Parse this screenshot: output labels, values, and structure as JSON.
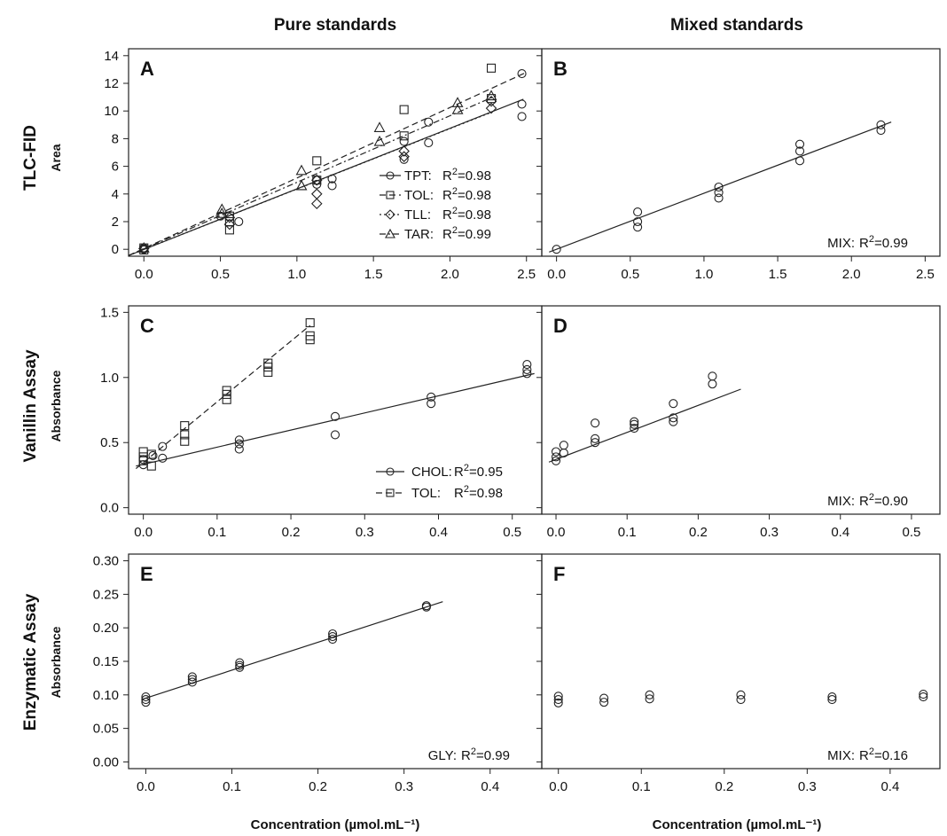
{
  "figure": {
    "col_titles": [
      "Pure standards",
      "Mixed standards"
    ],
    "row_titles": [
      "TLC-FID",
      "Vanillin Assay",
      "Enzymatic Assay"
    ],
    "ylabels": [
      "Area",
      "Absorbance",
      "Absorbance"
    ],
    "xlabel": "Concentration (µmol.mL⁻¹)"
  },
  "chart_data": [
    {
      "type": "scatter",
      "panel": "A",
      "xlim": [
        -0.1,
        2.6
      ],
      "ylim": [
        -0.5,
        14.5
      ],
      "xticks": [
        0.0,
        0.5,
        1.0,
        1.5,
        2.0,
        2.5
      ],
      "xtick_labels": [
        "0.0",
        "0.5",
        "1.0",
        "1.5",
        "2.0",
        "2.5"
      ],
      "yticks": [
        0,
        2,
        4,
        6,
        8,
        10,
        12,
        14
      ],
      "ytick_labels": [
        "0",
        "2",
        "4",
        "6",
        "8",
        "10",
        "12",
        "14"
      ],
      "show_y_labels": true,
      "legend_position": "bottom-right",
      "series": [
        {
          "name": "TPT",
          "marker": "circle",
          "line": "solid",
          "r2_label": "R²=0.98",
          "x": [
            0,
            0,
            0.5,
            0.62,
            1.13,
            1.13,
            1.23,
            1.23,
            1.7,
            1.7,
            1.86,
            1.86,
            2.47,
            2.47,
            2.47
          ],
          "y": [
            0,
            0.1,
            2.4,
            2.0,
            4.7,
            5.0,
            4.6,
            5.1,
            6.5,
            7.8,
            7.7,
            9.2,
            12.7,
            10.5,
            9.6
          ],
          "fit": [
            [
              -0.1,
              -0.45
            ],
            [
              2.48,
              10.85
            ]
          ]
        },
        {
          "name": "TOL",
          "marker": "square",
          "line": "dashed",
          "r2_label": "R²=0.98",
          "x": [
            0,
            0,
            0.56,
            0.56,
            0.56,
            1.13,
            1.13,
            1.7,
            1.7,
            2.27,
            2.27
          ],
          "y": [
            0.1,
            -0.05,
            1.4,
            2.0,
            2.4,
            5.0,
            6.4,
            8.2,
            10.1,
            13.1,
            10.9
          ],
          "fit": [
            [
              -0.1,
              -0.45
            ],
            [
              2.5,
              12.8
            ]
          ]
        },
        {
          "name": "TLL",
          "marker": "diamond",
          "line": "dotted",
          "r2_label": "R²=0.98",
          "x": [
            0,
            0.56,
            0.56,
            1.13,
            1.13,
            1.13,
            1.7,
            1.7,
            2.27,
            2.27
          ],
          "y": [
            0.05,
            1.8,
            2.3,
            3.3,
            4.0,
            5.0,
            6.7,
            7.1,
            10.2,
            10.7
          ],
          "fit": [
            [
              -0.1,
              -0.45
            ],
            [
              2.27,
              9.9
            ]
          ]
        },
        {
          "name": "TAR",
          "marker": "triangle",
          "line": "dashdot",
          "r2_label": "R²=0.99",
          "x": [
            0,
            0.51,
            0.51,
            1.03,
            1.03,
            1.54,
            1.54,
            2.05,
            2.05,
            2.27
          ],
          "y": [
            0.1,
            2.6,
            2.9,
            4.6,
            5.7,
            7.8,
            8.8,
            10.1,
            10.6,
            11.1
          ],
          "fit": [
            [
              -0.1,
              -0.45
            ],
            [
              2.3,
              11.1
            ]
          ]
        }
      ]
    },
    {
      "type": "scatter",
      "panel": "B",
      "xlim": [
        -0.1,
        2.6
      ],
      "ylim": [
        -0.5,
        14.5
      ],
      "xticks": [
        0.0,
        0.5,
        1.0,
        1.5,
        2.0,
        2.5
      ],
      "xtick_labels": [
        "0.0",
        "0.5",
        "1.0",
        "1.5",
        "2.0",
        "2.5"
      ],
      "yticks": [
        0,
        2,
        4,
        6,
        8,
        10,
        12,
        14
      ],
      "ytick_labels": [
        "0",
        "2",
        "4",
        "6",
        "8",
        "10",
        "12",
        "14"
      ],
      "show_y_labels": false,
      "legend_position": "bottom-right",
      "series": [
        {
          "name": "MIX",
          "marker": "circle",
          "line": "solid",
          "r2_label": "R²=0.99",
          "x": [
            0,
            0.55,
            0.55,
            0.55,
            1.1,
            1.1,
            1.1,
            1.65,
            1.65,
            1.65,
            2.2,
            2.2
          ],
          "y": [
            0,
            1.6,
            2.0,
            2.7,
            3.7,
            4.1,
            4.5,
            6.4,
            7.1,
            7.6,
            8.6,
            9.0
          ],
          "fit": [
            [
              -0.05,
              -0.2
            ],
            [
              2.27,
              9.2
            ]
          ]
        }
      ]
    },
    {
      "type": "scatter",
      "panel": "C",
      "xlim": [
        -0.02,
        0.54
      ],
      "ylim": [
        -0.05,
        1.55
      ],
      "xticks": [
        0.0,
        0.1,
        0.2,
        0.3,
        0.4,
        0.5
      ],
      "xtick_labels": [
        "0.0",
        "0.1",
        "0.2",
        "0.3",
        "0.4",
        "0.5"
      ],
      "yticks": [
        0.0,
        0.5,
        1.0,
        1.5
      ],
      "ytick_labels": [
        "0.0",
        "0.5",
        "1.0",
        "1.5"
      ],
      "show_y_labels": true,
      "legend_position": "bottom-right",
      "series": [
        {
          "name": "CHOL",
          "marker": "circle",
          "line": "solid",
          "r2_label": "R²=0.95",
          "x": [
            0,
            0,
            0.013,
            0.026,
            0.026,
            0.13,
            0.13,
            0.13,
            0.26,
            0.26,
            0.39,
            0.39,
            0.52,
            0.52,
            0.52
          ],
          "y": [
            0.33,
            0.37,
            0.4,
            0.38,
            0.47,
            0.45,
            0.49,
            0.52,
            0.56,
            0.7,
            0.8,
            0.85,
            1.03,
            1.06,
            1.1
          ],
          "fit": [
            [
              -0.01,
              0.32
            ],
            [
              0.53,
              1.03
            ]
          ]
        },
        {
          "name": "TOL",
          "marker": "square",
          "line": "dashed",
          "r2_label": "R²=0.98",
          "x": [
            0,
            0,
            0,
            0.011,
            0.011,
            0.056,
            0.056,
            0.056,
            0.113,
            0.113,
            0.113,
            0.169,
            0.169,
            0.169,
            0.226,
            0.226,
            0.226
          ],
          "y": [
            0.36,
            0.39,
            0.43,
            0.32,
            0.41,
            0.51,
            0.56,
            0.63,
            0.83,
            0.87,
            0.9,
            1.04,
            1.08,
            1.11,
            1.29,
            1.32,
            1.42
          ],
          "fit": [
            [
              -0.01,
              0.3
            ],
            [
              0.226,
              1.4
            ]
          ]
        }
      ]
    },
    {
      "type": "scatter",
      "panel": "D",
      "xlim": [
        -0.02,
        0.54
      ],
      "ylim": [
        -0.05,
        1.55
      ],
      "xticks": [
        0.0,
        0.1,
        0.2,
        0.3,
        0.4,
        0.5
      ],
      "xtick_labels": [
        "0.0",
        "0.1",
        "0.2",
        "0.3",
        "0.4",
        "0.5"
      ],
      "yticks": [
        0.0,
        0.5,
        1.0,
        1.5
      ],
      "ytick_labels": [
        "0.0",
        "0.5",
        "1.0",
        "1.5"
      ],
      "show_y_labels": false,
      "legend_position": "bottom-right",
      "series": [
        {
          "name": "MIX",
          "marker": "circle",
          "line": "solid",
          "r2_label": "R²=0.90",
          "x": [
            0,
            0,
            0,
            0.011,
            0.011,
            0.055,
            0.055,
            0.055,
            0.11,
            0.11,
            0.11,
            0.165,
            0.165,
            0.165,
            0.22,
            0.22
          ],
          "y": [
            0.36,
            0.39,
            0.43,
            0.42,
            0.48,
            0.5,
            0.53,
            0.65,
            0.61,
            0.64,
            0.66,
            0.66,
            0.69,
            0.8,
            0.95,
            1.01
          ],
          "fit": [
            [
              -0.01,
              0.35
            ],
            [
              0.26,
              0.91
            ]
          ]
        }
      ]
    },
    {
      "type": "scatter",
      "panel": "E",
      "xlim": [
        -0.02,
        0.46
      ],
      "ylim": [
        -0.01,
        0.31
      ],
      "xticks": [
        0.0,
        0.1,
        0.2,
        0.3,
        0.4
      ],
      "xtick_labels": [
        "0.0",
        "0.1",
        "0.2",
        "0.3",
        "0.4"
      ],
      "yticks": [
        0.0,
        0.05,
        0.1,
        0.15,
        0.2,
        0.25,
        0.3
      ],
      "ytick_labels": [
        "0.00",
        "0.05",
        "0.10",
        "0.15",
        "0.20",
        "0.25",
        "0.30"
      ],
      "show_y_labels": true,
      "legend_position": "bottom-right",
      "series": [
        {
          "name": "GLY",
          "marker": "circle",
          "line": "solid",
          "r2_label": "R²=0.99",
          "x": [
            0,
            0,
            0,
            0.054,
            0.054,
            0.054,
            0.109,
            0.109,
            0.109,
            0.217,
            0.217,
            0.217,
            0.326,
            0.326
          ],
          "y": [
            0.089,
            0.093,
            0.097,
            0.119,
            0.123,
            0.127,
            0.141,
            0.144,
            0.148,
            0.183,
            0.187,
            0.191,
            0.231,
            0.233
          ],
          "fit": [
            [
              -0.005,
              0.093
            ],
            [
              0.345,
              0.239
            ]
          ]
        }
      ]
    },
    {
      "type": "scatter",
      "panel": "F",
      "xlim": [
        -0.02,
        0.46
      ],
      "ylim": [
        -0.01,
        0.31
      ],
      "xticks": [
        0.0,
        0.1,
        0.2,
        0.3,
        0.4
      ],
      "xtick_labels": [
        "0.0",
        "0.1",
        "0.2",
        "0.3",
        "0.4"
      ],
      "yticks": [
        0.0,
        0.05,
        0.1,
        0.15,
        0.2,
        0.25,
        0.3
      ],
      "ytick_labels": [
        "0.00",
        "0.05",
        "0.10",
        "0.15",
        "0.20",
        "0.25",
        "0.30"
      ],
      "show_y_labels": false,
      "legend_position": "bottom-right",
      "series": [
        {
          "name": "MIX",
          "marker": "circle",
          "line": "none",
          "r2_label": "R²=0.16",
          "x": [
            0,
            0,
            0,
            0.055,
            0.055,
            0.11,
            0.11,
            0.22,
            0.22,
            0.33,
            0.33,
            0.44,
            0.44
          ],
          "y": [
            0.088,
            0.093,
            0.098,
            0.089,
            0.095,
            0.094,
            0.1,
            0.093,
            0.1,
            0.093,
            0.097,
            0.097,
            0.101
          ]
        }
      ]
    }
  ]
}
